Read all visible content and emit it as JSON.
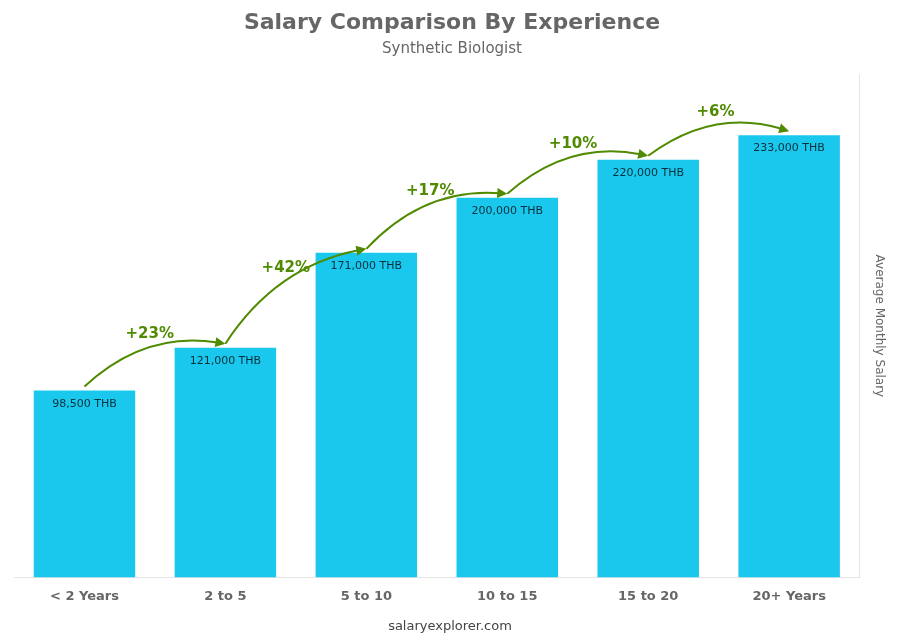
{
  "chart_data": {
    "type": "bar",
    "title": "Salary Comparison By Experience",
    "subtitle": "Synthetic Biologist",
    "categories": [
      "< 2 Years",
      "2 to 5",
      "5 to 10",
      "10 to 15",
      "15 to 20",
      "20+ Years"
    ],
    "values": [
      98500,
      121000,
      171000,
      200000,
      220000,
      233000
    ],
    "value_labels": [
      "98,500 THB",
      "121,000 THB",
      "171,000 THB",
      "200,000 THB",
      "220,000 THB",
      "233,000 THB"
    ],
    "data_labels": true,
    "color": "#1ac8ee",
    "ylabel": "Average Monthly Salary",
    "ylim": [
      0,
      265000
    ],
    "tick_labels": "x",
    "grid": false,
    "annotations": [
      "+23%",
      "+42%",
      "+17%",
      "+10%",
      "+6%"
    ],
    "caption": "salaryexplorer.com"
  }
}
